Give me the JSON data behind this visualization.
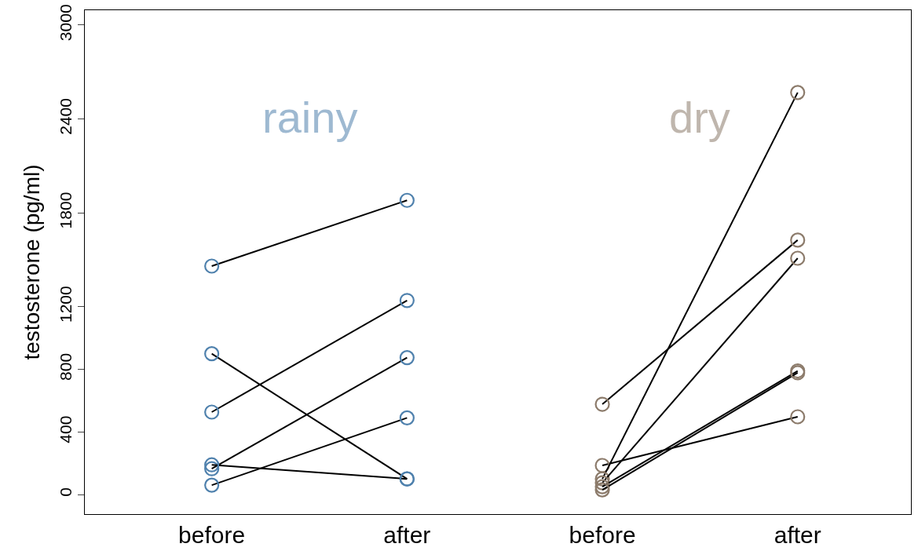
{
  "chart_data": {
    "type": "line",
    "ylabel": "testosterone (pg/ml)",
    "categories": [
      "before",
      "after",
      "before",
      "after"
    ],
    "ylim": [
      -125,
      3095
    ],
    "yticks": [
      0,
      400,
      800,
      1200,
      1800,
      2400,
      3000
    ],
    "grid": false,
    "marker": "circle",
    "line_style": "solid",
    "annotations": [
      "rainy",
      "dry"
    ],
    "series": [
      {
        "color": "#000000",
        "colors": [
          "#4f81ad",
          "#4f81ad",
          null,
          null
        ],
        "values": [
          1460,
          1880,
          null,
          null
        ]
      },
      {
        "color": "#000000",
        "colors": [
          "#4f81ad",
          "#4f81ad",
          null,
          null
        ],
        "values": [
          900,
          100,
          null,
          null
        ]
      },
      {
        "color": "#000000",
        "colors": [
          "#4f81ad",
          "#4f81ad",
          null,
          null
        ],
        "values": [
          527,
          1240,
          null,
          null
        ]
      },
      {
        "color": "#000000",
        "colors": [
          "#4f81ad",
          "#4f81ad",
          null,
          null
        ],
        "values": [
          165,
          875,
          null,
          null
        ]
      },
      {
        "color": "#000000",
        "colors": [
          "#4f81ad",
          "#4f81ad",
          null,
          null
        ],
        "values": [
          190,
          100,
          null,
          null
        ]
      },
      {
        "color": "#000000",
        "colors": [
          "#4f81ad",
          "#4f81ad",
          null,
          null
        ],
        "values": [
          60,
          490,
          null,
          null
        ]
      },
      {
        "color": "#000000",
        "colors": [
          null,
          null,
          "#8c7b6b",
          "#8c7b6b"
        ],
        "values": [
          null,
          null,
          577,
          1626
        ]
      },
      {
        "color": "#000000",
        "colors": [
          null,
          null,
          "#8c7b6b",
          "#8c7b6b"
        ],
        "values": [
          null,
          null,
          186,
          497
        ]
      },
      {
        "color": "#000000",
        "colors": [
          null,
          null,
          "#8c7b6b",
          "#8c7b6b"
        ],
        "values": [
          null,
          null,
          100,
          2569
        ]
      },
      {
        "color": "#000000",
        "colors": [
          null,
          null,
          "#8c7b6b",
          "#8c7b6b"
        ],
        "values": [
          null,
          null,
          75,
          1510
        ]
      },
      {
        "color": "#000000",
        "colors": [
          null,
          null,
          "#8c7b6b",
          "#8c7b6b"
        ],
        "values": [
          null,
          null,
          50,
          790
        ]
      },
      {
        "color": "#000000",
        "colors": [
          null,
          null,
          "#8c7b6b",
          "#8c7b6b"
        ],
        "values": [
          null,
          null,
          30,
          778
        ]
      }
    ]
  }
}
